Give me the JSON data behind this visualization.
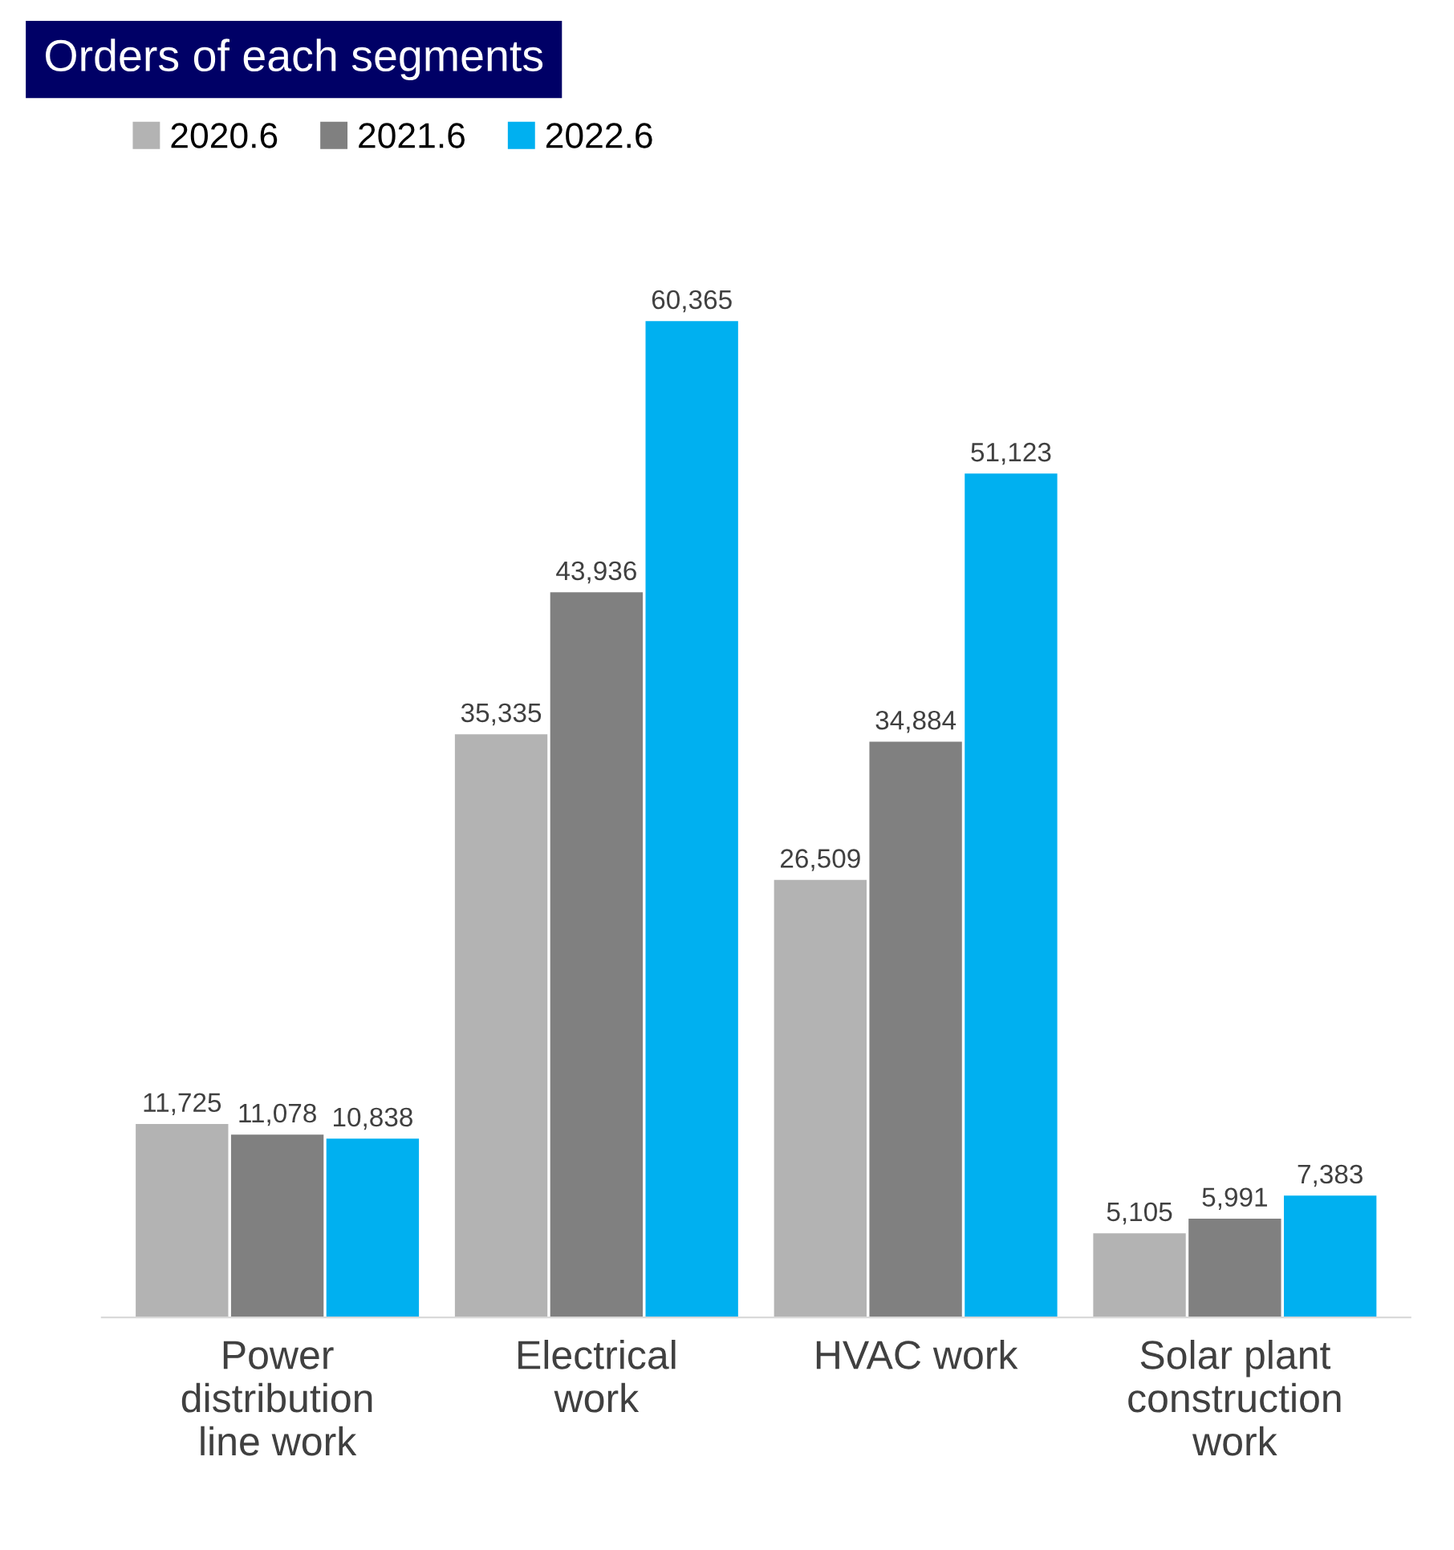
{
  "chart_data": {
    "type": "bar",
    "title": "Orders of each segments",
    "categories": [
      "Power\ndistribution\nline work",
      "Electrical\nwork",
      "HVAC work",
      "Solar plant\nconstruction\nwork"
    ],
    "series": [
      {
        "name": "2020.6",
        "color": "#b3b3b3",
        "values": [
          11725,
          35335,
          26509,
          5105
        ],
        "value_labels": [
          "11,725",
          "35,335",
          "26,509",
          "5,105"
        ]
      },
      {
        "name": "2021.6",
        "color": "#808080",
        "values": [
          11078,
          43936,
          34884,
          5991
        ],
        "value_labels": [
          "11,078",
          "43,936",
          "34,884",
          "5,991"
        ]
      },
      {
        "name": "2022.6",
        "color": "#00b0f0",
        "values": [
          10838,
          60365,
          51123,
          7383
        ],
        "value_labels": [
          "10,838",
          "60,365",
          "51,123",
          "7,383"
        ]
      }
    ],
    "legend": "top left",
    "grid": false
  }
}
